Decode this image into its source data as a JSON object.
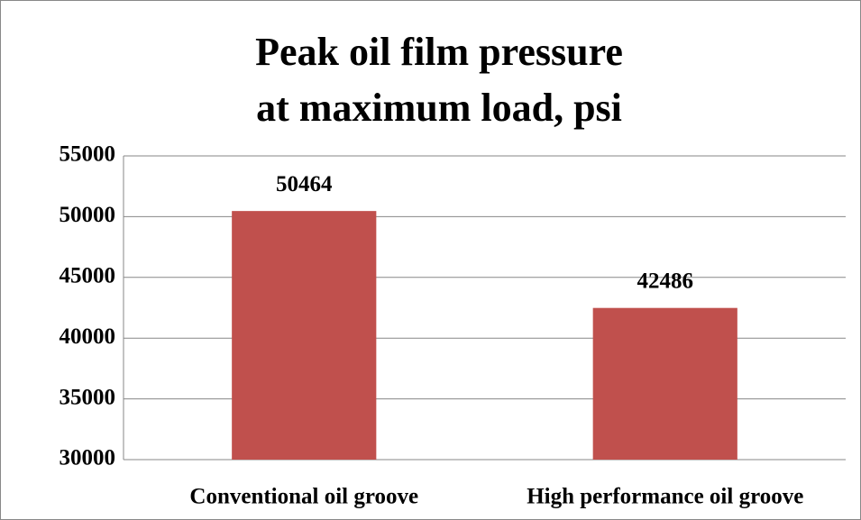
{
  "chart_data": {
    "type": "bar",
    "title": [
      "Peak oil film pressure",
      "at maximum load, psi"
    ],
    "categories": [
      "Conventional oil groove",
      "High performance oil groove"
    ],
    "values": [
      50464,
      42486
    ],
    "color": "#c0504d",
    "ylim": [
      30000,
      55000
    ],
    "yticks": [
      30000,
      35000,
      40000,
      45000,
      50000,
      55000
    ],
    "grid": true,
    "data_labels": true
  }
}
